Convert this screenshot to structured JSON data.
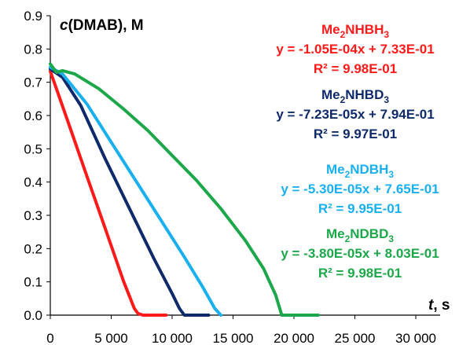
{
  "chart_data": {
    "type": "line",
    "ylabel": "c(DMAB), M",
    "xlabel": "t, s",
    "xlim": [
      0,
      32000
    ],
    "ylim": [
      0,
      0.9
    ],
    "x_ticks": [
      0,
      5000,
      10000,
      15000,
      20000,
      25000,
      30000
    ],
    "x_tick_labels": [
      "0",
      "5 000",
      "10 000",
      "15 000",
      "20 000",
      "25 000",
      "30 000"
    ],
    "y_ticks": [
      0,
      0.1,
      0.2,
      0.3,
      0.4,
      0.5,
      0.6,
      0.7,
      0.8,
      0.9
    ],
    "y_tick_labels": [
      "0.0",
      "0.1",
      "0.2",
      "0.3",
      "0.4",
      "0.5",
      "0.6",
      "0.7",
      "0.8",
      "0.9"
    ],
    "grid": false,
    "series": [
      {
        "color": "#ff1a1a",
        "annotation": {
          "name_main": "Me",
          "name_sub1": "2",
          "name_mid": "NHBH",
          "name_sub2": "3",
          "equation": "y = -1.05E-04x + 7.33E-01",
          "r2": "R² = 9.98E-01"
        },
        "x": [
          0,
          1500,
          3000,
          4500,
          6000,
          6900,
          7200,
          7600,
          9500
        ],
        "y": [
          0.733,
          0.576,
          0.418,
          0.261,
          0.103,
          0.02,
          0.005,
          0.0,
          0.0
        ]
      },
      {
        "color": "#0f2a6b",
        "annotation": {
          "name_main": "Me",
          "name_sub1": "2",
          "name_mid": "NHBD",
          "name_sub2": "3",
          "equation": "y = -7.23E-05x + 7.94E-01",
          "r2": "R² = 9.97E-01"
        },
        "x": [
          0,
          1000,
          2500,
          4500,
          6500,
          8500,
          10000,
          10600,
          11000,
          13000
        ],
        "y": [
          0.74,
          0.715,
          0.63,
          0.47,
          0.32,
          0.17,
          0.065,
          0.02,
          0.0,
          0.0
        ]
      },
      {
        "color": "#1ab0f0",
        "annotation": {
          "name_main": "Me",
          "name_sub1": "2",
          "name_mid": "NDBH",
          "name_sub2": "3",
          "equation": "y = -5.30E-05x + 7.65E-01",
          "r2": "R² = 9.95E-01"
        },
        "x": [
          0,
          1000,
          3000,
          5000,
          7000,
          9000,
          11000,
          12500,
          13500,
          14000
        ],
        "y": [
          0.745,
          0.725,
          0.635,
          0.52,
          0.405,
          0.29,
          0.175,
          0.085,
          0.02,
          0.0
        ]
      },
      {
        "color": "#1ca84a",
        "annotation": {
          "name_main": "Me",
          "name_sub1": "2",
          "name_mid": "NDBD",
          "name_sub2": "3",
          "equation": "y = -3.80E-05x + 8.03E-01",
          "r2": "R² = 9.98E-01"
        },
        "x": [
          0,
          500,
          1000,
          2000,
          4000,
          6000,
          8000,
          10000,
          12000,
          14000,
          16000,
          17500,
          18500,
          19000,
          22000
        ],
        "y": [
          0.755,
          0.73,
          0.735,
          0.725,
          0.68,
          0.62,
          0.555,
          0.48,
          0.405,
          0.32,
          0.225,
          0.14,
          0.06,
          0.0,
          0.0
        ]
      }
    ]
  }
}
